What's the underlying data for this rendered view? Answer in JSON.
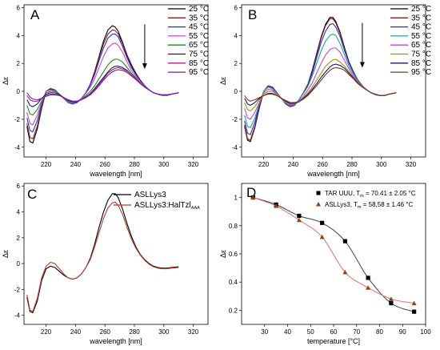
{
  "chart_data": [
    {
      "panel": "A",
      "type": "line",
      "xlabel": "wavelength [nm]",
      "ylabel": "Δε",
      "xlim": [
        205,
        330
      ],
      "ylim": [
        -4.7,
        6.2
      ],
      "xticks": [
        220,
        240,
        260,
        280,
        300,
        320
      ],
      "yticks": [
        -4,
        -2,
        0,
        2,
        4,
        6
      ],
      "legend_position": "top-right",
      "arrow": {
        "direction": "down",
        "x": 287,
        "y_from": 4.8,
        "y_to": 1.6
      },
      "legend_names": [
        "25 °C",
        "35 °C",
        "45 °C",
        "55 °C",
        "65 °C",
        "75 °C",
        "85 °C",
        "95 °C"
      ],
      "colors": [
        "#000000",
        "#8b1a1a",
        "#2233cc",
        "#cc44cc",
        "#228b22",
        "#1a1a66",
        "#aa2288",
        "#7722aa"
      ],
      "x": [
        207,
        209,
        211,
        214,
        217,
        220,
        223,
        226,
        229,
        232,
        235,
        238,
        241,
        244,
        247,
        250,
        253,
        256,
        259,
        262,
        265,
        267,
        269,
        272,
        275,
        278,
        281,
        284,
        287,
        290,
        293,
        296,
        299,
        302,
        305,
        310
      ],
      "series": [
        {
          "values": [
            -2.5,
            -3.6,
            -3.7,
            -2.7,
            -1.2,
            0.0,
            0.2,
            0.1,
            -0.2,
            -0.5,
            -0.8,
            -0.9,
            -0.8,
            -0.5,
            -0.1,
            0.5,
            1.4,
            2.5,
            3.6,
            4.4,
            4.7,
            4.6,
            4.3,
            3.5,
            2.6,
            1.9,
            1.3,
            0.8,
            0.4,
            0.1,
            -0.1,
            -0.2,
            -0.3,
            -0.3,
            -0.2,
            -0.1
          ]
        },
        {
          "values": [
            -2.3,
            -3.3,
            -3.4,
            -2.5,
            -1.1,
            0.0,
            0.2,
            0.1,
            -0.2,
            -0.5,
            -0.8,
            -0.9,
            -0.8,
            -0.5,
            -0.1,
            0.5,
            1.3,
            2.4,
            3.4,
            4.1,
            4.4,
            4.35,
            4.1,
            3.4,
            2.5,
            1.8,
            1.2,
            0.8,
            0.4,
            0.1,
            -0.1,
            -0.2,
            -0.3,
            -0.3,
            -0.2,
            -0.1
          ]
        },
        {
          "values": [
            -1.9,
            -2.8,
            -2.9,
            -2.1,
            -0.9,
            0.0,
            0.15,
            0.1,
            -0.2,
            -0.5,
            -0.8,
            -0.9,
            -0.8,
            -0.5,
            -0.1,
            0.45,
            1.2,
            2.2,
            3.1,
            3.8,
            4.1,
            4.1,
            3.9,
            3.2,
            2.4,
            1.7,
            1.2,
            0.75,
            0.4,
            0.1,
            -0.1,
            -0.2,
            -0.3,
            -0.3,
            -0.2,
            -0.1
          ]
        },
        {
          "values": [
            -1.5,
            -2.3,
            -2.4,
            -1.7,
            -0.8,
            0.0,
            0.1,
            0.05,
            -0.2,
            -0.5,
            -0.75,
            -0.85,
            -0.75,
            -0.5,
            -0.15,
            0.3,
            0.9,
            1.7,
            2.5,
            3.1,
            3.4,
            3.45,
            3.3,
            2.8,
            2.1,
            1.5,
            1.05,
            0.7,
            0.35,
            0.1,
            -0.1,
            -0.2,
            -0.3,
            -0.3,
            -0.2,
            -0.1
          ]
        },
        {
          "values": [
            -1.0,
            -1.6,
            -1.7,
            -1.3,
            -0.7,
            -0.1,
            0.0,
            0.0,
            -0.2,
            -0.45,
            -0.7,
            -0.8,
            -0.75,
            -0.55,
            -0.3,
            0.0,
            0.4,
            0.9,
            1.4,
            1.9,
            2.2,
            2.3,
            2.3,
            2.1,
            1.7,
            1.3,
            0.95,
            0.6,
            0.35,
            0.1,
            -0.1,
            -0.2,
            -0.25,
            -0.25,
            -0.2,
            -0.1
          ]
        },
        {
          "values": [
            -0.6,
            -1.0,
            -1.1,
            -0.9,
            -0.5,
            -0.2,
            -0.1,
            -0.1,
            -0.25,
            -0.45,
            -0.65,
            -0.75,
            -0.75,
            -0.6,
            -0.4,
            -0.15,
            0.2,
            0.6,
            1.0,
            1.4,
            1.7,
            1.8,
            1.8,
            1.7,
            1.5,
            1.2,
            0.9,
            0.6,
            0.3,
            0.1,
            -0.1,
            -0.2,
            -0.25,
            -0.25,
            -0.2,
            -0.1
          ]
        },
        {
          "values": [
            -0.3,
            -0.6,
            -0.7,
            -0.7,
            -0.5,
            -0.3,
            -0.2,
            -0.2,
            -0.3,
            -0.45,
            -0.6,
            -0.7,
            -0.7,
            -0.6,
            -0.45,
            -0.2,
            0.1,
            0.5,
            0.9,
            1.3,
            1.55,
            1.65,
            1.7,
            1.6,
            1.45,
            1.2,
            0.9,
            0.6,
            0.3,
            0.1,
            -0.1,
            -0.2,
            -0.25,
            -0.25,
            -0.2,
            -0.1
          ]
        },
        {
          "values": [
            -0.1,
            -0.4,
            -0.55,
            -0.6,
            -0.5,
            -0.35,
            -0.25,
            -0.25,
            -0.3,
            -0.45,
            -0.6,
            -0.7,
            -0.7,
            -0.6,
            -0.45,
            -0.25,
            0.05,
            0.4,
            0.8,
            1.15,
            1.4,
            1.5,
            1.55,
            1.5,
            1.35,
            1.1,
            0.85,
            0.55,
            0.3,
            0.1,
            -0.1,
            -0.2,
            -0.25,
            -0.25,
            -0.2,
            -0.1
          ]
        }
      ]
    },
    {
      "panel": "B",
      "type": "line",
      "xlabel": "wavelength [nm]",
      "ylabel": "Δε",
      "xlim": [
        205,
        330
      ],
      "ylim": [
        -4.7,
        6.2
      ],
      "xticks": [
        220,
        240,
        260,
        280,
        300,
        320
      ],
      "yticks": [
        -4,
        -2,
        0,
        2,
        4,
        6
      ],
      "legend_position": "top-right",
      "arrow": {
        "direction": "down",
        "x": 287,
        "y_from": 4.9,
        "y_to": 1.7
      },
      "legend_names": [
        "25 °C",
        "35 °C",
        "45 °C",
        "55 °C",
        "65 °C",
        "75 °C",
        "85 °C",
        "95 °C"
      ],
      "colors": [
        "#000000",
        "#8b1a1a",
        "#2233cc",
        "#20a0a0",
        "#cc44cc",
        "#999900",
        "#1a1a77",
        "#7a3a1a"
      ],
      "x": [
        207,
        209,
        211,
        214,
        217,
        220,
        223,
        226,
        229,
        232,
        235,
        238,
        241,
        244,
        247,
        250,
        253,
        256,
        259,
        262,
        265,
        267,
        269,
        272,
        275,
        278,
        281,
        284,
        287,
        290,
        293,
        296,
        299,
        302,
        305,
        310
      ],
      "series": [
        {
          "values": [
            -2.5,
            -3.5,
            -3.6,
            -2.6,
            -1.2,
            0.0,
            0.4,
            0.3,
            -0.1,
            -0.5,
            -0.9,
            -1.1,
            -1.0,
            -0.6,
            -0.1,
            0.5,
            1.5,
            2.7,
            3.9,
            4.8,
            5.3,
            5.3,
            5.0,
            4.2,
            3.1,
            2.1,
            1.4,
            0.8,
            0.4,
            0.1,
            -0.1,
            -0.25,
            -0.3,
            -0.3,
            -0.2,
            -0.1
          ]
        },
        {
          "values": [
            -2.4,
            -3.4,
            -3.5,
            -2.5,
            -1.1,
            0.0,
            0.4,
            0.3,
            -0.1,
            -0.5,
            -0.9,
            -1.1,
            -1.0,
            -0.6,
            -0.1,
            0.5,
            1.4,
            2.6,
            3.8,
            4.7,
            5.2,
            5.2,
            4.9,
            4.1,
            3.0,
            2.1,
            1.4,
            0.8,
            0.4,
            0.1,
            -0.1,
            -0.25,
            -0.3,
            -0.3,
            -0.2,
            -0.1
          ]
        },
        {
          "values": [
            -2.1,
            -3.0,
            -3.1,
            -2.2,
            -1.0,
            0.0,
            0.35,
            0.25,
            -0.1,
            -0.5,
            -0.9,
            -1.05,
            -1.0,
            -0.6,
            -0.1,
            0.45,
            1.3,
            2.4,
            3.5,
            4.3,
            4.8,
            4.85,
            4.6,
            3.9,
            2.9,
            2.0,
            1.35,
            0.8,
            0.4,
            0.1,
            -0.1,
            -0.25,
            -0.3,
            -0.3,
            -0.2,
            -0.1
          ]
        },
        {
          "values": [
            -1.7,
            -2.5,
            -2.6,
            -1.9,
            -0.9,
            0.0,
            0.3,
            0.2,
            -0.15,
            -0.5,
            -0.85,
            -1.0,
            -0.95,
            -0.6,
            -0.15,
            0.35,
            1.1,
            2.0,
            2.9,
            3.6,
            4.0,
            4.1,
            4.0,
            3.4,
            2.6,
            1.8,
            1.25,
            0.75,
            0.35,
            0.1,
            -0.1,
            -0.25,
            -0.3,
            -0.3,
            -0.2,
            -0.1
          ]
        },
        {
          "values": [
            -1.2,
            -1.9,
            -2.0,
            -1.5,
            -0.8,
            -0.1,
            0.15,
            0.1,
            -0.2,
            -0.5,
            -0.8,
            -0.95,
            -0.95,
            -0.7,
            -0.35,
            0.1,
            0.6,
            1.3,
            2.0,
            2.6,
            3.0,
            3.1,
            3.1,
            2.8,
            2.2,
            1.6,
            1.1,
            0.7,
            0.35,
            0.1,
            -0.1,
            -0.2,
            -0.3,
            -0.3,
            -0.2,
            -0.1
          ]
        },
        {
          "values": [
            -0.8,
            -1.3,
            -1.4,
            -1.1,
            -0.6,
            -0.2,
            0.0,
            0.0,
            -0.25,
            -0.5,
            -0.75,
            -0.9,
            -0.9,
            -0.75,
            -0.45,
            -0.1,
            0.3,
            0.8,
            1.3,
            1.8,
            2.1,
            2.25,
            2.3,
            2.1,
            1.8,
            1.4,
            1.0,
            0.65,
            0.35,
            0.1,
            -0.1,
            -0.2,
            -0.3,
            -0.3,
            -0.2,
            -0.1
          ]
        },
        {
          "values": [
            -0.5,
            -0.9,
            -1.0,
            -0.8,
            -0.5,
            -0.3,
            -0.15,
            -0.15,
            -0.3,
            -0.5,
            -0.7,
            -0.85,
            -0.85,
            -0.75,
            -0.5,
            -0.2,
            0.15,
            0.55,
            1.0,
            1.4,
            1.75,
            1.9,
            1.95,
            1.85,
            1.65,
            1.3,
            0.95,
            0.6,
            0.3,
            0.1,
            -0.1,
            -0.2,
            -0.3,
            -0.3,
            -0.2,
            -0.1
          ]
        },
        {
          "values": [
            -0.3,
            -0.6,
            -0.7,
            -0.6,
            -0.45,
            -0.3,
            -0.2,
            -0.2,
            -0.3,
            -0.5,
            -0.65,
            -0.8,
            -0.8,
            -0.75,
            -0.55,
            -0.3,
            0.05,
            0.4,
            0.8,
            1.2,
            1.5,
            1.65,
            1.7,
            1.65,
            1.5,
            1.2,
            0.9,
            0.55,
            0.3,
            0.1,
            -0.1,
            -0.2,
            -0.3,
            -0.3,
            -0.2,
            -0.1
          ]
        }
      ]
    },
    {
      "panel": "C",
      "type": "line",
      "xlabel": "wavelength [nm]",
      "ylabel": "Δε",
      "xlim": [
        205,
        330
      ],
      "ylim": [
        -4.7,
        6.2
      ],
      "xticks": [
        220,
        240,
        260,
        280,
        300,
        320
      ],
      "yticks": [
        -4,
        -2,
        0,
        2,
        4,
        6
      ],
      "legend_position": "top-right",
      "legend": [
        {
          "main": "ASLLys3",
          "sub": ""
        },
        {
          "main": "ASLLys3:HalTzl",
          "sub": "AAA"
        }
      ],
      "colors": [
        "#000000",
        "#c0392b"
      ],
      "x": [
        207,
        209,
        211,
        214,
        217,
        220,
        223,
        226,
        229,
        232,
        235,
        238,
        241,
        244,
        247,
        250,
        253,
        256,
        259,
        262,
        265,
        267,
        269,
        272,
        275,
        278,
        281,
        284,
        287,
        290,
        293,
        296,
        299,
        302,
        305,
        310
      ],
      "series": [
        {
          "values": [
            -2.6,
            -3.7,
            -3.8,
            -2.9,
            -1.3,
            -0.4,
            -0.2,
            -0.3,
            -0.6,
            -0.9,
            -1.1,
            -1.2,
            -1.1,
            -0.8,
            -0.3,
            0.4,
            1.5,
            2.8,
            4.0,
            4.9,
            5.4,
            5.4,
            5.1,
            4.2,
            3.1,
            2.1,
            1.3,
            0.7,
            0.3,
            0.0,
            -0.2,
            -0.3,
            -0.35,
            -0.35,
            -0.3,
            -0.25
          ]
        },
        {
          "values": [
            -2.4,
            -3.6,
            -3.7,
            -2.7,
            -1.1,
            -0.2,
            0.1,
            0.0,
            -0.4,
            -0.8,
            -1.1,
            -1.2,
            -1.1,
            -0.8,
            -0.3,
            0.3,
            1.3,
            2.4,
            3.5,
            4.3,
            4.7,
            4.75,
            4.5,
            3.8,
            2.8,
            1.9,
            1.2,
            0.65,
            0.25,
            -0.05,
            -0.25,
            -0.35,
            -0.4,
            -0.4,
            -0.35,
            -0.3
          ]
        }
      ]
    },
    {
      "panel": "D",
      "type": "scatter",
      "xlabel": "temperature [°C]",
      "ylabel": "Δε",
      "xlim": [
        20,
        100
      ],
      "ylim": [
        0.1,
        1.1
      ],
      "xticks": [
        30,
        40,
        50,
        60,
        70,
        80,
        90,
        100
      ],
      "yticks": [
        0.2,
        0.4,
        0.6,
        0.8,
        1.0
      ],
      "legend_position": "top-right",
      "legend": [
        {
          "main": "TAR UUU, T",
          "sub": "m",
          "rest": " = 70.41 ± 2.05 °C",
          "marker": "square",
          "color": "#000000"
        },
        {
          "main": "ASLLys3, T",
          "sub": "m",
          "rest": " = 58,58 ± 1.46 °C",
          "marker": "triangle",
          "color": "#8b4513"
        }
      ],
      "series": [
        {
          "x": [
            25,
            35,
            45,
            55,
            65,
            75,
            85,
            95
          ],
          "values": [
            1.0,
            0.95,
            0.87,
            0.82,
            0.69,
            0.43,
            0.25,
            0.19
          ],
          "fit_color": "#444444"
        },
        {
          "x": [
            25,
            35,
            45,
            55,
            65,
            75,
            85,
            95
          ],
          "values": [
            1.0,
            0.94,
            0.84,
            0.72,
            0.47,
            0.36,
            0.28,
            0.25
          ],
          "fit_color": "#e07070"
        }
      ]
    }
  ]
}
